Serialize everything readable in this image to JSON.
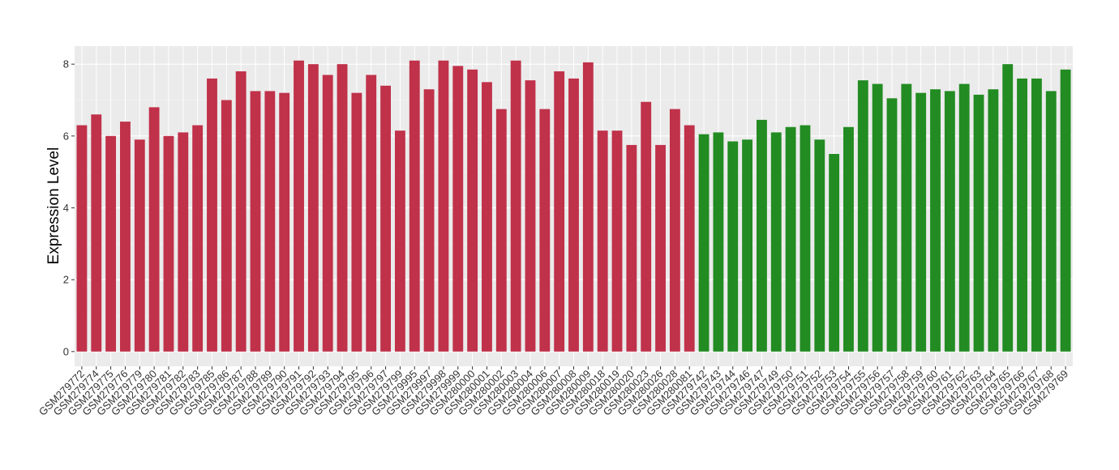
{
  "chart_data": {
    "type": "bar",
    "y_label": "Expression Level",
    "categories": [
      "GSM279772",
      "GSM279774",
      "GSM279775",
      "GSM279776",
      "GSM279779",
      "GSM279780",
      "GSM279781",
      "GSM279782",
      "GSM279783",
      "GSM279785",
      "GSM279786",
      "GSM279787",
      "GSM279788",
      "GSM279789",
      "GSM279790",
      "GSM279791",
      "GSM279792",
      "GSM279793",
      "GSM279794",
      "GSM279795",
      "GSM279796",
      "GSM279797",
      "GSM279799",
      "GSM279995",
      "GSM279997",
      "GSM279998",
      "GSM279999",
      "GSM280000",
      "GSM280001",
      "GSM280002",
      "GSM280003",
      "GSM280004",
      "GSM280006",
      "GSM280007",
      "GSM280008",
      "GSM280009",
      "GSM280018",
      "GSM280019",
      "GSM280020",
      "GSM280023",
      "GSM280026",
      "GSM280028",
      "GSM280081",
      "GSM279742",
      "GSM279743",
      "GSM279744",
      "GSM279746",
      "GSM279747",
      "GSM279749",
      "GSM279750",
      "GSM279751",
      "GSM279752",
      "GSM279753",
      "GSM279754",
      "GSM279755",
      "GSM279756",
      "GSM279757",
      "GSM279758",
      "GSM279759",
      "GSM279760",
      "GSM279761",
      "GSM279762",
      "GSM279763",
      "GSM279764",
      "GSM279765",
      "GSM279766",
      "GSM279767",
      "GSM279768",
      "GSM279769"
    ],
    "values": [
      6.3,
      6.6,
      6.0,
      6.4,
      5.9,
      6.8,
      6.0,
      6.1,
      6.3,
      7.6,
      7.0,
      7.8,
      7.25,
      7.25,
      7.2,
      8.1,
      8.0,
      7.7,
      8.0,
      7.2,
      7.7,
      7.4,
      6.15,
      8.1,
      7.3,
      8.1,
      7.95,
      7.85,
      7.5,
      6.75,
      8.1,
      7.55,
      6.75,
      7.8,
      7.6,
      8.05,
      6.15,
      6.15,
      5.75,
      6.95,
      5.75,
      6.75,
      6.3,
      6.05,
      6.1,
      5.85,
      5.9,
      6.45,
      6.1,
      6.25,
      6.3,
      5.9,
      5.5,
      6.25,
      7.55,
      7.45,
      7.05,
      7.45,
      7.2,
      7.3,
      7.25,
      7.45,
      7.15,
      7.3,
      8.0,
      7.6,
      7.6,
      7.25,
      7.85
    ],
    "colors": [
      "#c0314a",
      "#c0314a",
      "#c0314a",
      "#c0314a",
      "#c0314a",
      "#c0314a",
      "#c0314a",
      "#c0314a",
      "#c0314a",
      "#c0314a",
      "#c0314a",
      "#c0314a",
      "#c0314a",
      "#c0314a",
      "#c0314a",
      "#c0314a",
      "#c0314a",
      "#c0314a",
      "#c0314a",
      "#c0314a",
      "#c0314a",
      "#c0314a",
      "#c0314a",
      "#c0314a",
      "#c0314a",
      "#c0314a",
      "#c0314a",
      "#c0314a",
      "#c0314a",
      "#c0314a",
      "#c0314a",
      "#c0314a",
      "#c0314a",
      "#c0314a",
      "#c0314a",
      "#c0314a",
      "#c0314a",
      "#c0314a",
      "#c0314a",
      "#c0314a",
      "#c0314a",
      "#c0314a",
      "#c0314a",
      "#228b22",
      "#228b22",
      "#228b22",
      "#228b22",
      "#228b22",
      "#228b22",
      "#228b22",
      "#228b22",
      "#228b22",
      "#228b22",
      "#228b22",
      "#228b22",
      "#228b22",
      "#228b22",
      "#228b22",
      "#228b22",
      "#228b22",
      "#228b22",
      "#228b22",
      "#228b22",
      "#228b22",
      "#228b22",
      "#228b22",
      "#228b22",
      "#228b22",
      "#228b22"
    ],
    "ylim": [
      -0.41,
      8.5
    ],
    "yticks": [
      0,
      2,
      4,
      6,
      8
    ],
    "grid": true
  }
}
